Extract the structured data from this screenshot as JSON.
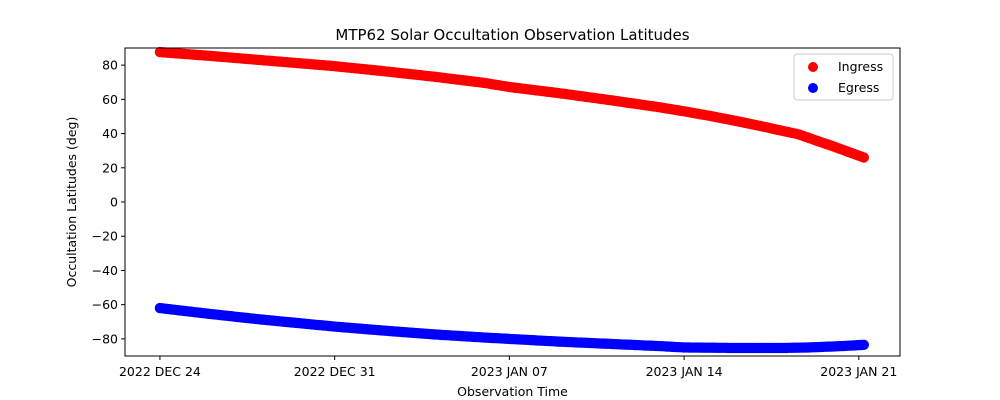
{
  "chart_data": {
    "type": "scatter",
    "title": "MTP62 Solar Occultation Observation Latitudes",
    "xlabel": "Observation Time",
    "ylabel": "Occultation Latitudes (deg)",
    "x_unit": "days since 2022 DEC 24",
    "xlim": [
      -1.4,
      29.65
    ],
    "ylim": [
      -90,
      90
    ],
    "x_ticks": [
      {
        "value": 0,
        "label": "2022 DEC 24"
      },
      {
        "value": 7,
        "label": "2022 DEC 31"
      },
      {
        "value": 14,
        "label": "2023 JAN 07"
      },
      {
        "value": 21,
        "label": "2023 JAN 14"
      },
      {
        "value": 28,
        "label": "2023 JAN 21"
      }
    ],
    "y_ticks": [
      {
        "value": 80,
        "label": "80"
      },
      {
        "value": 60,
        "label": "60"
      },
      {
        "value": 40,
        "label": "40"
      },
      {
        "value": 20,
        "label": "20"
      },
      {
        "value": 0,
        "label": "0"
      },
      {
        "value": -20,
        "label": "−20"
      },
      {
        "value": -40,
        "label": "−40"
      },
      {
        "value": -60,
        "label": "−60"
      },
      {
        "value": -80,
        "label": "−80"
      }
    ],
    "grid": false,
    "legend_position": "top-right",
    "series": [
      {
        "name": "Ingress",
        "color": "#ff0000",
        "x": [
          0,
          2,
          4,
          6,
          7,
          9,
          11,
          13,
          14,
          16,
          18,
          20,
          21,
          22,
          23,
          24,
          25,
          25.6,
          26,
          27,
          28.2
        ],
        "y": [
          87.6,
          85.4,
          83.0,
          80.6,
          79.4,
          76.4,
          73.2,
          69.6,
          67.2,
          63.6,
          59.6,
          55.4,
          53.0,
          50.4,
          47.6,
          44.6,
          41.4,
          39.5,
          37.4,
          32.4,
          26.0
        ]
      },
      {
        "name": "Egress",
        "color": "#0000ff",
        "x": [
          0,
          2,
          4,
          6,
          7,
          9,
          11,
          13,
          14,
          16,
          18,
          20,
          21,
          23,
          25,
          26,
          27,
          28.2
        ],
        "y": [
          -62.0,
          -65.4,
          -68.6,
          -71.4,
          -72.8,
          -75.2,
          -77.4,
          -79.2,
          -80.0,
          -81.6,
          -82.9,
          -84.2,
          -85.0,
          -85.3,
          -85.3,
          -85.0,
          -84.4,
          -83.5
        ]
      }
    ]
  }
}
